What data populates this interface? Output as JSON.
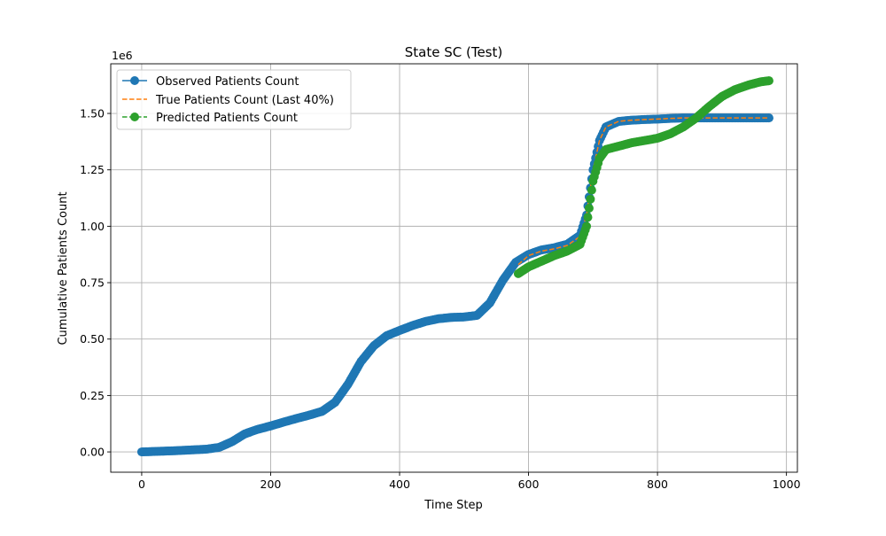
{
  "chart_data": {
    "type": "line",
    "title": "State SC (Test)",
    "xlabel": "Time Step",
    "ylabel": "Cumulative Patients Count",
    "y_offset_label": "1e6",
    "xlim": [
      -48,
      1017
    ],
    "ylim": [
      -0.09,
      1.72
    ],
    "x_ticks": [
      0,
      200,
      400,
      600,
      800,
      1000
    ],
    "x_tick_labels": [
      "0",
      "200",
      "400",
      "600",
      "800",
      "1000"
    ],
    "y_ticks": [
      0,
      0.25,
      0.5,
      0.75,
      1.0,
      1.25,
      1.5
    ],
    "y_tick_labels": [
      "0.00",
      "0.25",
      "0.50",
      "0.75",
      "1.00",
      "1.25",
      "1.50"
    ],
    "grid": true,
    "legend_position": "upper-left",
    "series": [
      {
        "name": "Observed Patients Count",
        "color": "#1f77b4",
        "style": "solid-line-with-markers",
        "x": [
          0,
          50,
          100,
          120,
          140,
          160,
          180,
          200,
          220,
          240,
          260,
          280,
          300,
          320,
          340,
          360,
          380,
          400,
          420,
          440,
          460,
          480,
          500,
          520,
          540,
          560,
          580,
          600,
          620,
          640,
          660,
          680,
          690,
          700,
          710,
          720,
          740,
          760,
          780,
          800,
          820,
          840,
          860,
          880,
          900,
          920,
          940,
          960,
          973
        ],
        "y": [
          0.0,
          0.005,
          0.012,
          0.02,
          0.045,
          0.08,
          0.1,
          0.115,
          0.132,
          0.148,
          0.163,
          0.18,
          0.22,
          0.3,
          0.4,
          0.47,
          0.515,
          0.538,
          0.56,
          0.578,
          0.59,
          0.596,
          0.598,
          0.605,
          0.66,
          0.76,
          0.84,
          0.875,
          0.895,
          0.905,
          0.92,
          0.96,
          1.05,
          1.25,
          1.38,
          1.44,
          1.465,
          1.47,
          1.473,
          1.475,
          1.478,
          1.48,
          1.48,
          1.48,
          1.48,
          1.48,
          1.48,
          1.48,
          1.48
        ]
      },
      {
        "name": "True Patients Count (Last 40%)",
        "color": "#ff7f0e",
        "style": "dashed-line",
        "x": [
          584,
          600,
          620,
          640,
          660,
          680,
          690,
          700,
          710,
          720,
          740,
          760,
          780,
          800,
          820,
          840,
          860,
          880,
          900,
          920,
          940,
          960,
          973
        ],
        "y": [
          0.83,
          0.87,
          0.89,
          0.9,
          0.915,
          0.955,
          1.05,
          1.25,
          1.38,
          1.44,
          1.465,
          1.47,
          1.473,
          1.475,
          1.478,
          1.48,
          1.48,
          1.48,
          1.48,
          1.48,
          1.48,
          1.48,
          1.48
        ]
      },
      {
        "name": "Predicted Patients Count",
        "color": "#2ca02c",
        "style": "dashed-line-with-markers",
        "x": [
          584,
          600,
          620,
          640,
          660,
          680,
          690,
          700,
          710,
          720,
          740,
          760,
          780,
          800,
          820,
          840,
          860,
          880,
          900,
          920,
          940,
          960,
          973
        ],
        "y": [
          0.79,
          0.82,
          0.845,
          0.87,
          0.89,
          0.92,
          1.0,
          1.2,
          1.3,
          1.34,
          1.355,
          1.37,
          1.38,
          1.39,
          1.41,
          1.44,
          1.48,
          1.53,
          1.575,
          1.605,
          1.625,
          1.64,
          1.645
        ]
      }
    ]
  }
}
